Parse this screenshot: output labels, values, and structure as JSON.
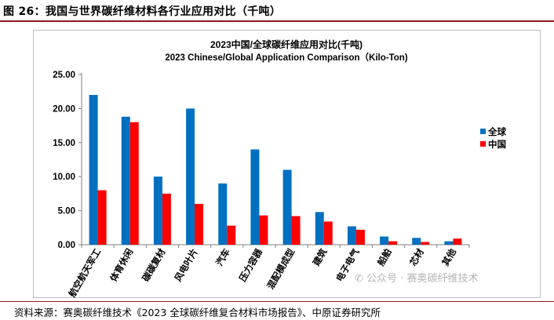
{
  "figure_title": "图 26：我国与世界碳纤维材料各行业应用对比（千吨）",
  "source_text": "资料来源：赛奥碳纤维技术《2023 全球碳纤维复合材料市场报告》、中原证券研究所",
  "watermark": "公众号 · 赛奥碳纤维技术",
  "colors": {
    "global": "#0070c0",
    "china": "#ff0000",
    "rule": "#8a1c1c"
  },
  "chart_data": {
    "type": "bar",
    "title": "2023中国/全球碳纤维应用对比(千吨)",
    "subtitle": "2023 Chinese/Global Application Comparison（Kilo-Ton)",
    "categories": [
      "航空航天军工",
      "体育休闲",
      "碳碳复材",
      "风电叶片",
      "汽车",
      "压力容器",
      "混配模成型",
      "建筑",
      "电子电气",
      "船舶",
      "芯材",
      "其他"
    ],
    "series": [
      {
        "name": "全球",
        "values": [
          22.0,
          18.8,
          10.0,
          20.0,
          9.0,
          14.0,
          11.0,
          4.8,
          2.7,
          1.2,
          1.0,
          0.5
        ]
      },
      {
        "name": "中国",
        "values": [
          8.0,
          18.0,
          7.5,
          6.0,
          2.8,
          4.3,
          4.2,
          3.4,
          2.2,
          0.5,
          0.4,
          0.9
        ]
      }
    ],
    "ylim": [
      0,
      25
    ],
    "yticks": [
      "0.00",
      "5.00",
      "10.00",
      "15.00",
      "20.00",
      "25.00"
    ],
    "xlabel": "",
    "ylabel": "",
    "legend": "right"
  }
}
